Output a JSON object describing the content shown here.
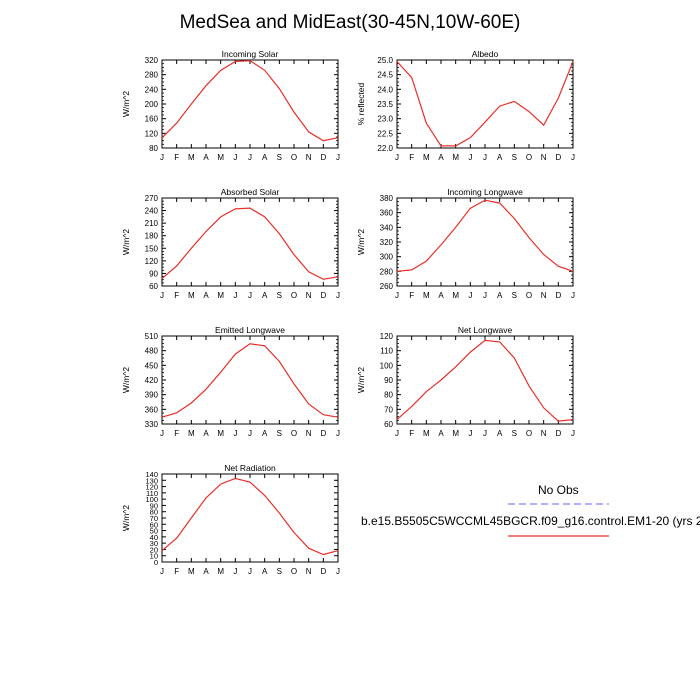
{
  "title": "MedSea and MidEast(30-45N,10W-60E)",
  "legend": {
    "obs_label": "No Obs",
    "obs_color": "#8080ff",
    "model_label": "b.e15.B5505C5WCCML45BGCR.f09_g16.control.EM1-20 (yrs 2",
    "model_color": "#e8302a"
  },
  "chart_data": [
    {
      "type": "line",
      "title": "Incoming Solar",
      "ylabel": "W/m^2",
      "xlabel": "",
      "categories": [
        "J",
        "F",
        "M",
        "A",
        "M",
        "J",
        "J",
        "A",
        "S",
        "O",
        "N",
        "D",
        "J"
      ],
      "ylim": [
        80,
        320
      ],
      "yticks": [
        80,
        120,
        160,
        200,
        240,
        280,
        320
      ],
      "series": [
        {
          "values": [
            108,
            148,
            200,
            250,
            292,
            316,
            318,
            292,
            242,
            178,
            124,
            100,
            108
          ]
        }
      ]
    },
    {
      "type": "line",
      "title": "Albedo",
      "ylabel": "% reflected",
      "xlabel": "",
      "categories": [
        "J",
        "F",
        "M",
        "A",
        "M",
        "J",
        "J",
        "A",
        "S",
        "O",
        "N",
        "D",
        "J"
      ],
      "ylim": [
        22.0,
        25.0
      ],
      "yticks": [
        "22.0",
        "22.5",
        "23.0",
        "23.5",
        "24.0",
        "24.5",
        "25.0"
      ],
      "series": [
        {
          "values": [
            24.95,
            24.4,
            22.85,
            22.07,
            22.07,
            22.35,
            22.88,
            23.43,
            23.59,
            23.24,
            22.78,
            23.7,
            24.95
          ]
        }
      ]
    },
    {
      "type": "line",
      "title": "Absorbed Solar",
      "ylabel": "W/m^2",
      "xlabel": "",
      "categories": [
        "J",
        "F",
        "M",
        "A",
        "M",
        "J",
        "J",
        "A",
        "S",
        "O",
        "N",
        "D",
        "J"
      ],
      "ylim": [
        60,
        270
      ],
      "yticks": [
        60,
        90,
        120,
        150,
        180,
        210,
        240,
        270
      ],
      "series": [
        {
          "values": [
            78,
            108,
            150,
            190,
            225,
            244,
            246,
            225,
            185,
            135,
            94,
            76,
            82
          ]
        }
      ]
    },
    {
      "type": "line",
      "title": "Incoming Longwave",
      "ylabel": "W/m^2",
      "xlabel": "",
      "categories": [
        "J",
        "F",
        "M",
        "A",
        "M",
        "J",
        "J",
        "A",
        "S",
        "O",
        "N",
        "D",
        "J"
      ],
      "ylim": [
        260,
        380
      ],
      "yticks": [
        260,
        280,
        300,
        320,
        340,
        360,
        380
      ],
      "series": [
        {
          "values": [
            280,
            282,
            294,
            316,
            340,
            366,
            377,
            373,
            352,
            326,
            303,
            287,
            280
          ]
        }
      ]
    },
    {
      "type": "line",
      "title": "Emitted Longwave",
      "ylabel": "W/m^2",
      "xlabel": "",
      "categories": [
        "J",
        "F",
        "M",
        "A",
        "M",
        "J",
        "J",
        "A",
        "S",
        "O",
        "N",
        "D",
        "J"
      ],
      "ylim": [
        330,
        510
      ],
      "yticks": [
        330,
        360,
        390,
        420,
        450,
        480,
        510
      ],
      "series": [
        {
          "values": [
            344,
            353,
            373,
            401,
            436,
            473,
            494,
            490,
            458,
            412,
            371,
            349,
            344
          ]
        }
      ]
    },
    {
      "type": "line",
      "title": "Net Longwave",
      "ylabel": "W/m^2",
      "xlabel": "",
      "categories": [
        "J",
        "F",
        "M",
        "A",
        "M",
        "J",
        "J",
        "A",
        "S",
        "O",
        "N",
        "D",
        "J"
      ],
      "ylim": [
        60,
        120
      ],
      "yticks": [
        60,
        70,
        80,
        90,
        100,
        110,
        120
      ],
      "series": [
        {
          "values": [
            63,
            72,
            82,
            90,
            99,
            109,
            117,
            116,
            105,
            86,
            71,
            62,
            63
          ]
        }
      ]
    },
    {
      "type": "line",
      "title": "Net Radiation",
      "ylabel": "W/m^2",
      "xlabel": "",
      "categories": [
        "J",
        "F",
        "M",
        "A",
        "M",
        "J",
        "J",
        "A",
        "S",
        "O",
        "N",
        "D",
        "J"
      ],
      "ylim": [
        0,
        140
      ],
      "yticks": [
        0,
        10,
        20,
        30,
        40,
        50,
        60,
        70,
        80,
        90,
        100,
        110,
        120,
        130,
        140
      ],
      "series": [
        {
          "values": [
            18,
            38,
            70,
            102,
            124,
            133,
            127,
            106,
            78,
            47,
            22,
            12,
            18
          ]
        }
      ]
    }
  ]
}
